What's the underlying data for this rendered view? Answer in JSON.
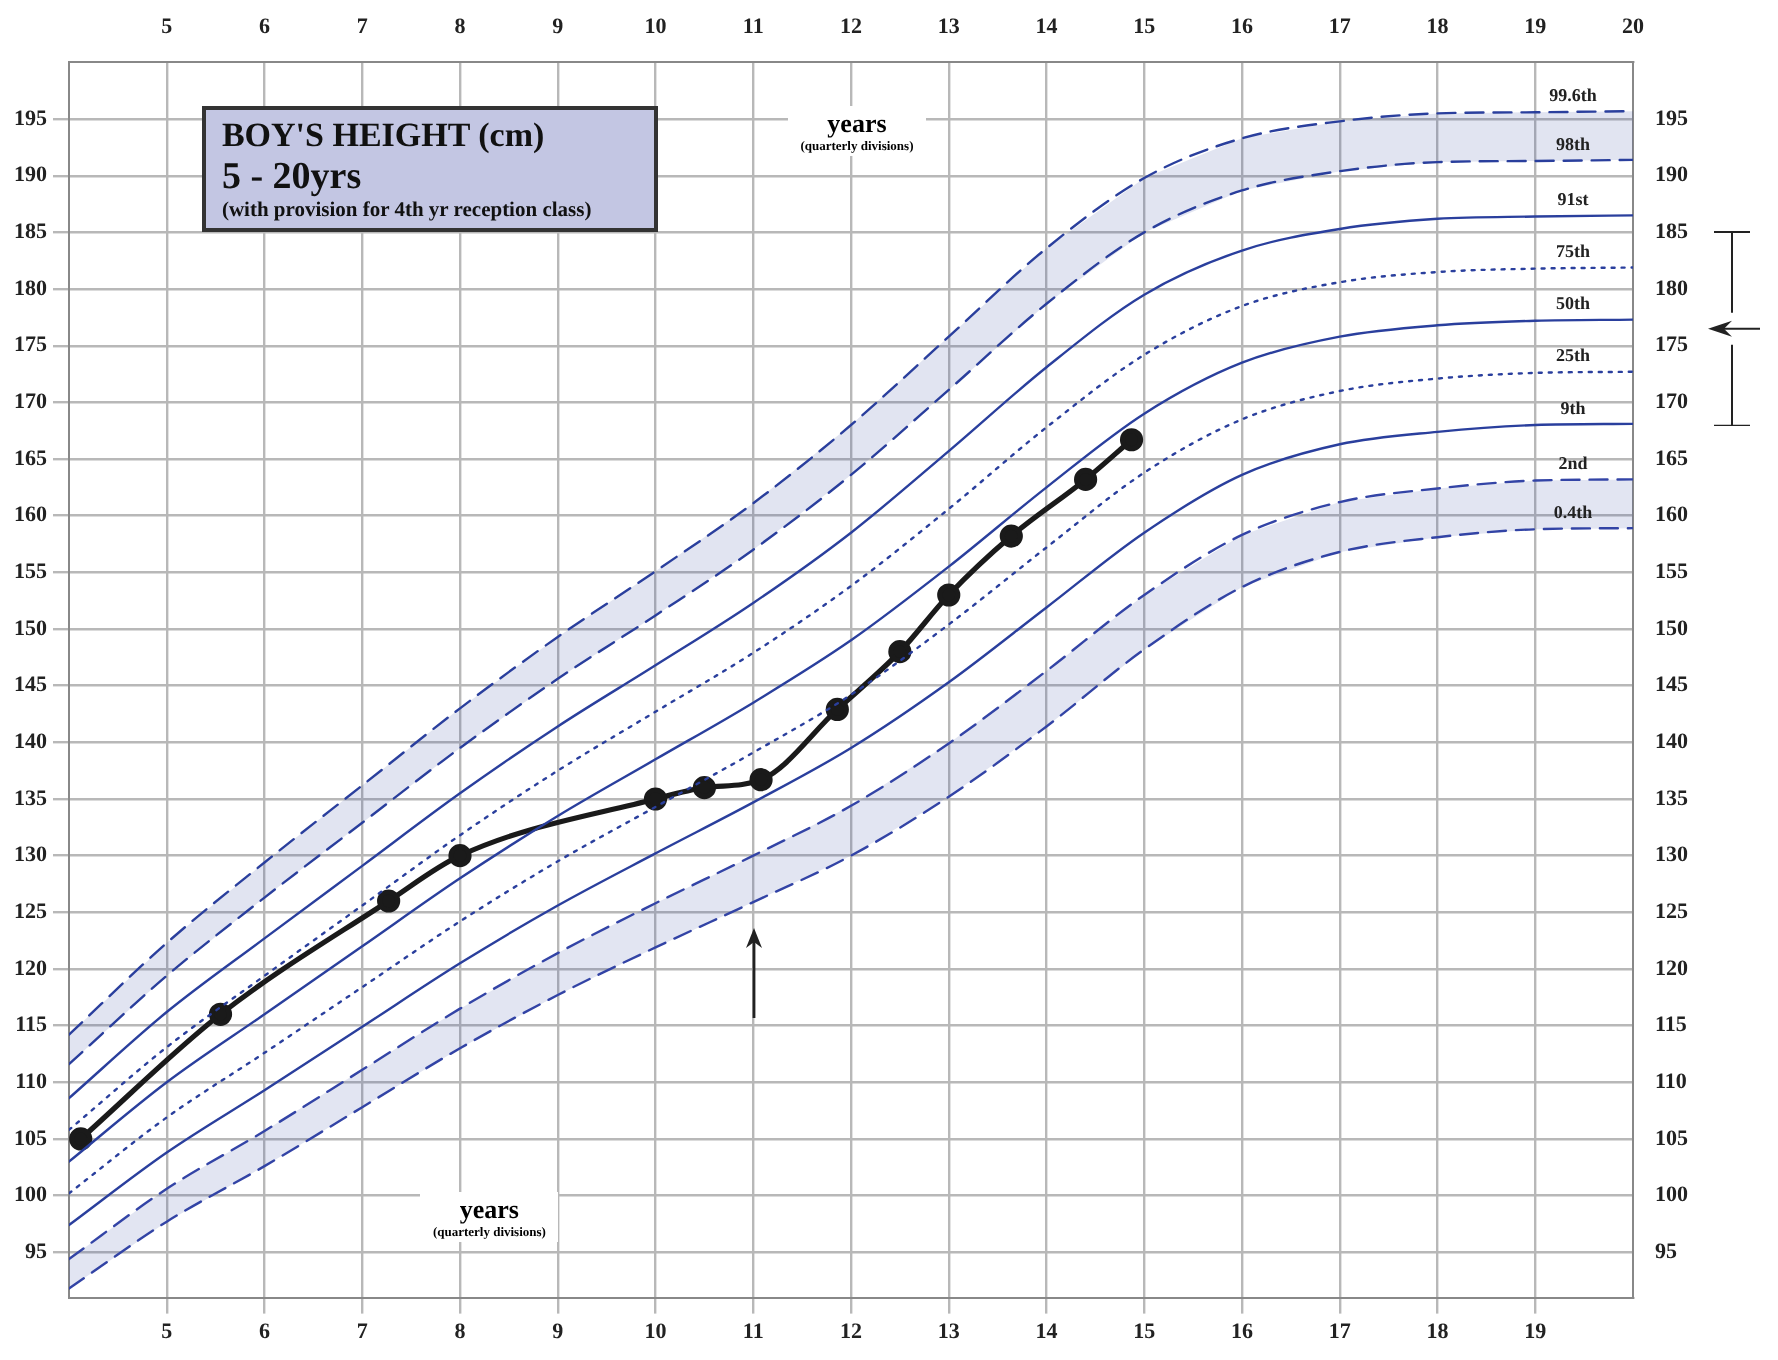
{
  "chart_data": {
    "type": "line",
    "title": "BOY'S HEIGHT (cm)",
    "subtitle": "5 - 20yrs",
    "annotations": [
      "(with provision for 4th yr reception class)",
      "years",
      "(quarterly divisions)",
      "years",
      "(quarterly divisions)"
    ],
    "xlim": [
      4,
      20
    ],
    "xticks": [
      5,
      6,
      7,
      8,
      9,
      10,
      11,
      12,
      13,
      14,
      15,
      16,
      17,
      18,
      19
    ],
    "x2lim": [
      4,
      20
    ],
    "x2ticks": [
      5,
      6,
      7,
      8,
      9,
      10,
      11,
      12,
      13,
      14,
      15,
      16,
      17,
      18,
      19,
      20
    ],
    "ylim": [
      91,
      200
    ],
    "yticks": [
      95,
      100,
      105,
      110,
      115,
      120,
      125,
      130,
      135,
      140,
      145,
      150,
      155,
      160,
      165,
      170,
      175,
      180,
      185,
      190,
      195
    ],
    "y2lim": [
      91,
      200
    ],
    "y2ticks": [
      95,
      100,
      105,
      110,
      115,
      120,
      125,
      130,
      135,
      140,
      145,
      150,
      155,
      160,
      165,
      170,
      175,
      180,
      185,
      190,
      195
    ],
    "grid": true,
    "legend": false,
    "series": [
      {
        "name": "99.6th",
        "color": "#2a3f9d",
        "line_style": "dashed",
        "marker": "none",
        "x": [
          4,
          5,
          6,
          7,
          8,
          9,
          10,
          11,
          12,
          13,
          14,
          15,
          16,
          17,
          18,
          19,
          20
        ],
        "values": [
          114.2,
          122.3,
          129.4,
          136.2,
          143,
          149.3,
          155.1,
          161.1,
          168,
          175.8,
          183.6,
          189.8,
          193.3,
          194.8,
          195.5,
          195.6,
          195.7
        ],
        "lower": [
          111.6,
          119.4,
          126.3,
          132.9,
          139.5,
          145.6,
          151.2,
          157,
          163.6,
          171.1,
          178.7,
          185,
          188.7,
          190.4,
          191.2,
          191.3,
          191.4
        ],
        "upper": [
          114.2,
          122.3,
          129.4,
          136.2,
          143,
          149.3,
          155.1,
          161.1,
          168,
          175.8,
          183.6,
          189.8,
          193.3,
          194.8,
          195.5,
          195.6,
          195.7
        ]
      },
      {
        "name": "98th",
        "color": "#2a3f9d",
        "line_style": "dashed",
        "marker": "none",
        "x": [
          4,
          5,
          6,
          7,
          8,
          9,
          10,
          11,
          12,
          13,
          14,
          15,
          16,
          17,
          18,
          19,
          20
        ],
        "values": [
          111.6,
          119.4,
          126.3,
          132.9,
          139.5,
          145.6,
          151.2,
          157,
          163.6,
          171.1,
          178.7,
          185,
          188.7,
          190.4,
          191.2,
          191.3,
          191.4
        ]
      },
      {
        "name": "91st",
        "color": "#2a3f9d",
        "line_style": "solid",
        "marker": "none",
        "x": [
          4,
          5,
          6,
          7,
          8,
          9,
          10,
          11,
          12,
          13,
          14,
          15,
          16,
          17,
          18,
          19,
          20
        ],
        "values": [
          108.6,
          116.2,
          122.7,
          129.1,
          135.5,
          141.4,
          146.8,
          152.3,
          158.5,
          165.7,
          173.1,
          179.5,
          183.4,
          185.3,
          186.2,
          186.4,
          186.5
        ]
      },
      {
        "name": "75th",
        "color": "#2a3f9d",
        "line_style": "dotted",
        "marker": "none",
        "x": [
          4,
          5,
          6,
          7,
          8,
          9,
          10,
          11,
          12,
          13,
          14,
          15,
          16,
          17,
          18,
          19,
          20
        ],
        "values": [
          105.8,
          113.1,
          119.4,
          125.6,
          131.8,
          137.5,
          142.7,
          147.9,
          153.8,
          160.6,
          167.8,
          174.2,
          178.5,
          180.6,
          181.5,
          181.8,
          181.9
        ]
      },
      {
        "name": "50th",
        "color": "#2a3f9d",
        "line_style": "solid",
        "marker": "none",
        "x": [
          4,
          5,
          6,
          7,
          8,
          9,
          10,
          11,
          12,
          13,
          14,
          15,
          16,
          17,
          18,
          19,
          20
        ],
        "values": [
          103,
          110,
          116,
          122,
          128,
          133.5,
          138.5,
          143.5,
          149,
          155.5,
          162.5,
          169,
          173.5,
          175.8,
          176.8,
          177.2,
          177.3
        ]
      },
      {
        "name": "25th",
        "color": "#2a3f9d",
        "line_style": "dotted",
        "marker": "none",
        "x": [
          4,
          5,
          6,
          7,
          8,
          9,
          10,
          11,
          12,
          13,
          14,
          15,
          16,
          17,
          18,
          19,
          20
        ],
        "values": [
          100.2,
          106.9,
          112.6,
          118.4,
          124.2,
          129.5,
          134.3,
          139.1,
          144.2,
          150.4,
          157.2,
          163.8,
          168.5,
          171,
          172.1,
          172.6,
          172.7
        ]
      },
      {
        "name": "9th",
        "color": "#2a3f9d",
        "line_style": "solid",
        "marker": "none",
        "x": [
          4,
          5,
          6,
          7,
          8,
          9,
          10,
          11,
          12,
          13,
          14,
          15,
          16,
          17,
          18,
          19,
          20
        ],
        "values": [
          97.4,
          103.8,
          109.3,
          114.9,
          120.5,
          125.6,
          130.2,
          134.7,
          139.5,
          145.3,
          151.9,
          158.5,
          163.6,
          166.3,
          167.4,
          168,
          168.1
        ]
      },
      {
        "name": "2nd",
        "color": "#3344a6",
        "line_style": "dashed",
        "marker": "none",
        "x": [
          4,
          5,
          6,
          7,
          8,
          9,
          10,
          11,
          12,
          13,
          14,
          15,
          16,
          17,
          18,
          19,
          20
        ],
        "values": [
          94.4,
          100.6,
          105.7,
          111.1,
          116.5,
          121.4,
          125.8,
          130,
          134.4,
          139.9,
          146.3,
          153,
          158.3,
          161.2,
          162.4,
          163.1,
          163.2
        ],
        "lower": [
          91.8,
          97.7,
          102.6,
          107.8,
          113,
          117.7,
          121.9,
          125.9,
          130,
          135.2,
          141.4,
          148.2,
          153.7,
          156.8,
          158.1,
          158.8,
          158.9
        ],
        "upper": [
          94.4,
          100.6,
          105.7,
          111.1,
          116.5,
          121.4,
          125.8,
          130,
          134.4,
          139.9,
          146.3,
          153,
          158.3,
          161.2,
          162.4,
          163.1,
          163.2
        ]
      },
      {
        "name": "0.4th",
        "color": "#3344a6",
        "line_style": "dashed",
        "marker": "none",
        "x": [
          4,
          5,
          6,
          7,
          8,
          9,
          10,
          11,
          12,
          13,
          14,
          15,
          16,
          17,
          18,
          19,
          20
        ],
        "values": [
          91.8,
          97.7,
          102.6,
          107.8,
          113,
          117.7,
          121.9,
          125.9,
          130,
          135.2,
          141.4,
          148.2,
          153.7,
          156.8,
          158.1,
          158.8,
          158.9
        ]
      },
      {
        "color": "#1a1a1a",
        "line_style": "solid",
        "marker": "circle",
        "x": [
          4.12,
          5.55,
          7.27,
          8,
          10,
          10.5,
          11.08,
          11.86,
          12.5,
          13,
          13.64,
          14.4,
          14.87
        ],
        "values": [
          105,
          116,
          126,
          130,
          135,
          136,
          136.7,
          142.9,
          148,
          153,
          158.2,
          163.2,
          166.7
        ]
      }
    ]
  }
}
